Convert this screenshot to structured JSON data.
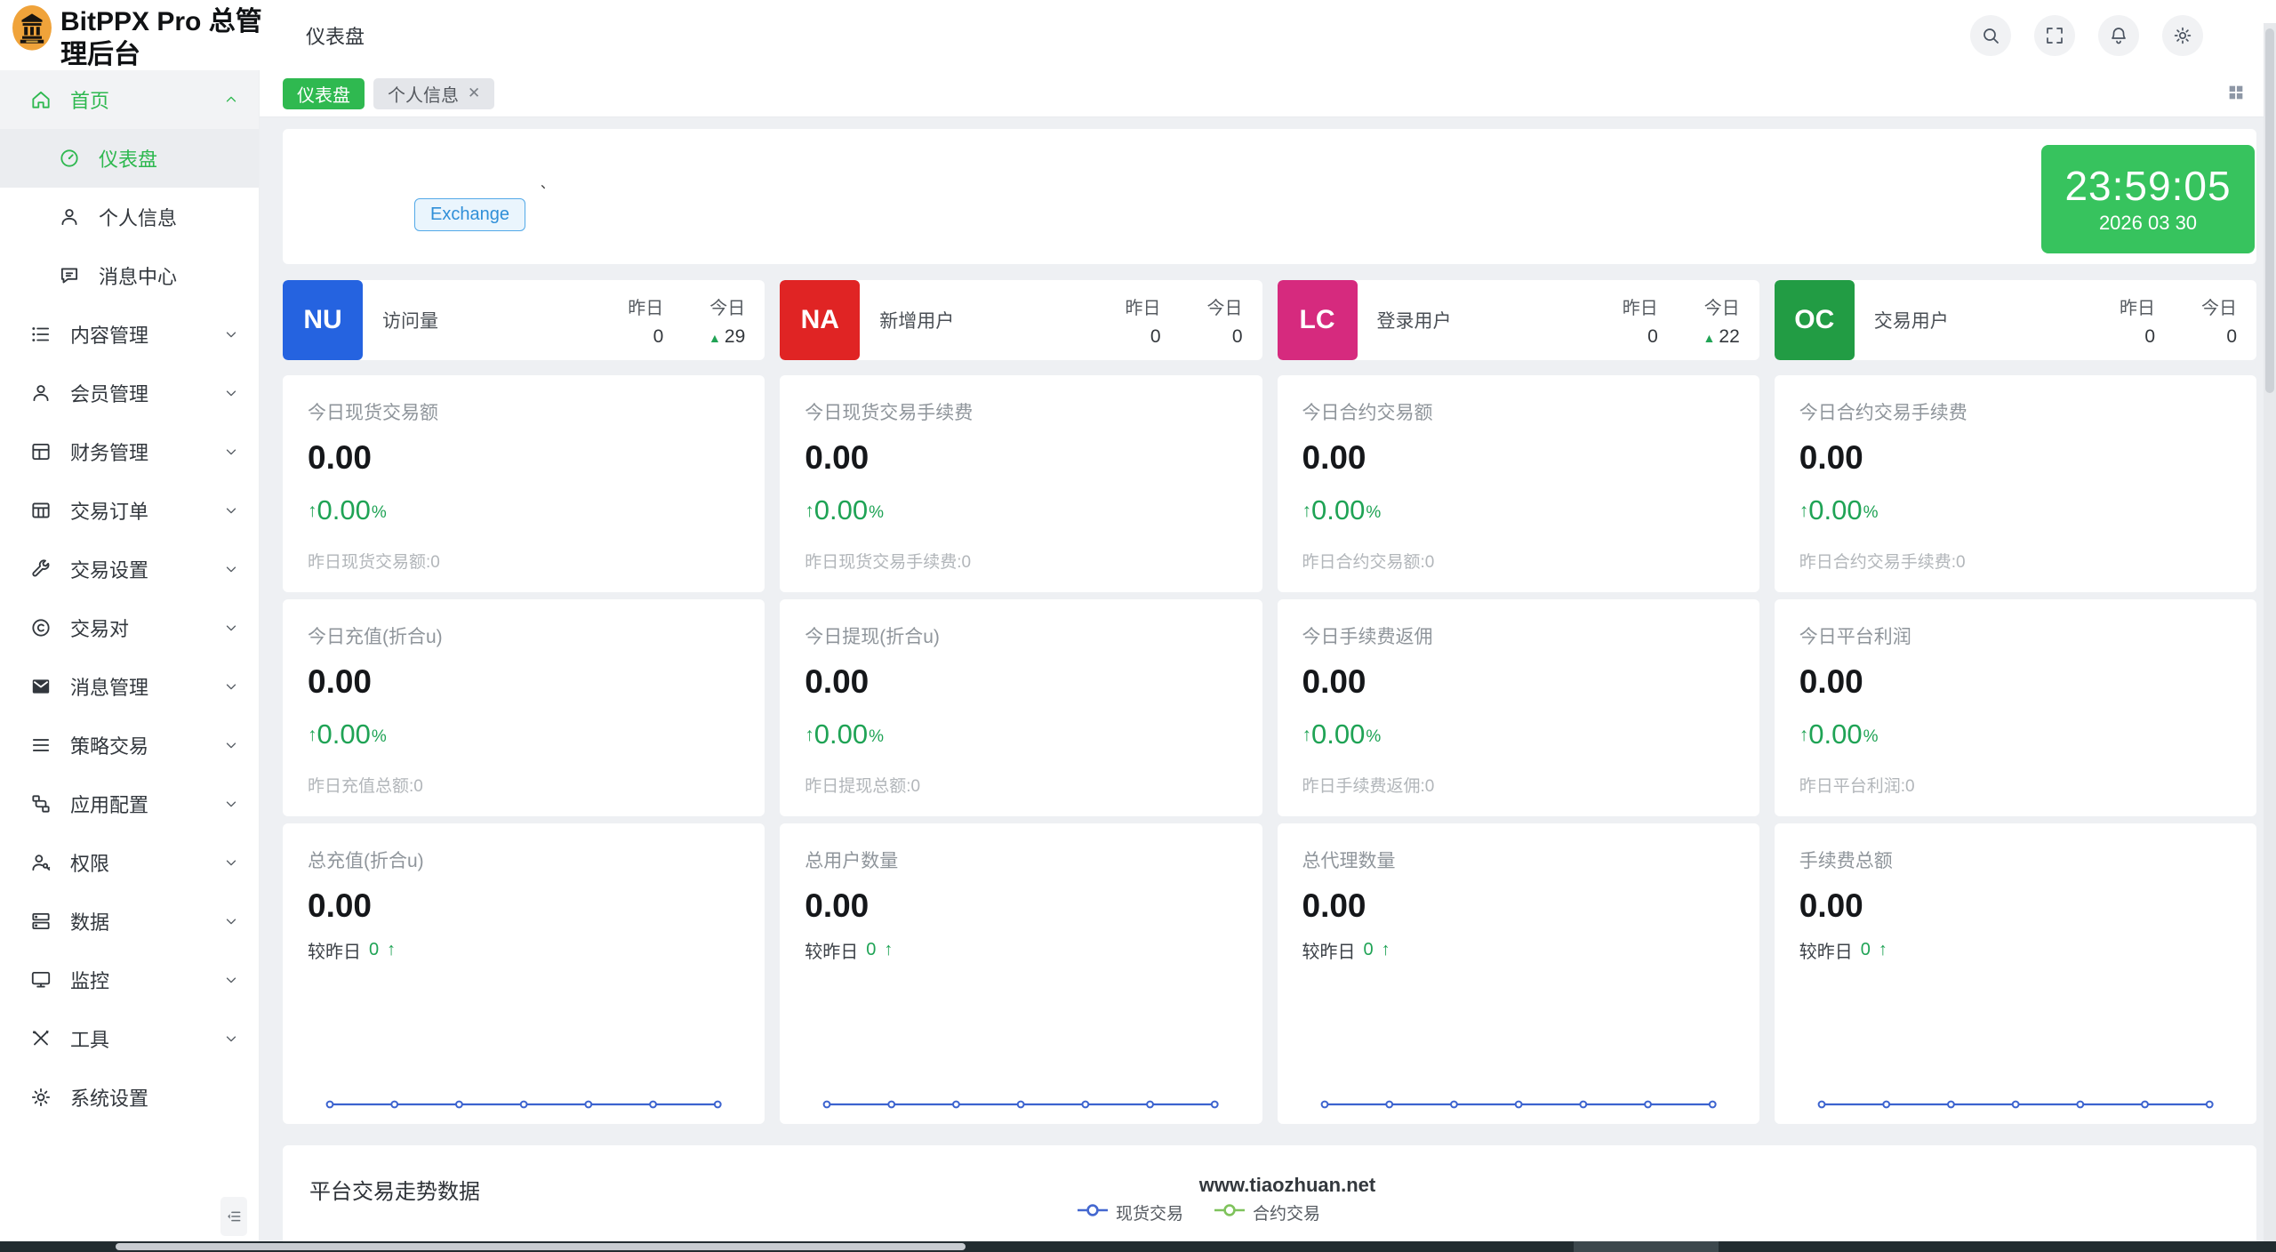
{
  "app": {
    "title": "BitPPX Pro 总管理后台",
    "breadcrumb": "仪表盘"
  },
  "header_actions": [
    {
      "icon": "search"
    },
    {
      "icon": "fullscreen"
    },
    {
      "icon": "bell"
    },
    {
      "icon": "gear"
    }
  ],
  "tabbar": {
    "tabs": [
      {
        "label": "仪表盘",
        "active": true,
        "closable": false
      },
      {
        "label": "个人信息",
        "active": false,
        "closable": true
      }
    ]
  },
  "sidebar": {
    "items": [
      {
        "id": "home",
        "icon": "home",
        "label": "首页",
        "level": 0,
        "chevron": "up",
        "color": "green",
        "bg": true
      },
      {
        "id": "dashboard",
        "icon": "gauge",
        "label": "仪表盘",
        "level": 1,
        "active": true
      },
      {
        "id": "profile",
        "icon": "user",
        "label": "个人信息",
        "level": 1
      },
      {
        "id": "message-center",
        "icon": "chat",
        "label": "消息中心",
        "level": 1
      },
      {
        "id": "content-mgmt",
        "icon": "list",
        "label": "内容管理",
        "level": 0,
        "chevron": "down"
      },
      {
        "id": "member-mgmt",
        "icon": "user",
        "label": "会员管理",
        "level": 0,
        "chevron": "down"
      },
      {
        "id": "finance-mgmt",
        "icon": "window",
        "label": "财务管理",
        "level": 0,
        "chevron": "down"
      },
      {
        "id": "trade-orders",
        "icon": "table",
        "label": "交易订单",
        "level": 0,
        "chevron": "down"
      },
      {
        "id": "trade-settings",
        "icon": "wrench",
        "label": "交易设置",
        "level": 0,
        "chevron": "down"
      },
      {
        "id": "trade-pairs",
        "icon": "copyright",
        "label": "交易对",
        "level": 0,
        "chevron": "down"
      },
      {
        "id": "message-mgmt",
        "icon": "envelope",
        "label": "消息管理",
        "level": 0,
        "chevron": "down"
      },
      {
        "id": "strategy-trade",
        "icon": "menu",
        "label": "策略交易",
        "level": 0,
        "chevron": "down"
      },
      {
        "id": "app-config",
        "icon": "nodes",
        "label": "应用配置",
        "level": 0,
        "chevron": "down"
      },
      {
        "id": "permissions",
        "icon": "userkey",
        "label": "权限",
        "level": 0,
        "chevron": "down"
      },
      {
        "id": "data",
        "icon": "server",
        "label": "数据",
        "level": 0,
        "chevron": "down"
      },
      {
        "id": "monitor",
        "icon": "monitor",
        "label": "监控",
        "level": 0,
        "chevron": "down"
      },
      {
        "id": "tools",
        "icon": "tools",
        "label": "工具",
        "level": 0,
        "chevron": "down"
      },
      {
        "id": "system-settings",
        "icon": "gear",
        "label": "系统设置",
        "level": 0
      }
    ]
  },
  "welcome": {
    "mark": "、",
    "exchange_button": "Exchange",
    "clock_time": "23:59:05",
    "clock_date": "2026 03 30"
  },
  "badge_cards": [
    {
      "code": "NU",
      "color": "#2563e0",
      "label": "访问量",
      "col1_label": "昨日",
      "col2_label": "今日",
      "col1_value": "0",
      "col2_value": "29",
      "col2_up": true
    },
    {
      "code": "NA",
      "color": "#e02424",
      "label": "新增用户",
      "col1_label": "昨日",
      "col2_label": "今日",
      "col1_value": "0",
      "col2_value": "0",
      "col2_up": false
    },
    {
      "code": "LC",
      "color": "#d62a7e",
      "label": "登录用户",
      "col1_label": "昨日",
      "col2_label": "今日",
      "col1_value": "0",
      "col2_value": "22",
      "col2_up": true
    },
    {
      "code": "OC",
      "color": "#229c44",
      "label": "交易用户",
      "col1_label": "昨日",
      "col2_label": "今日",
      "col1_value": "0",
      "col2_value": "0",
      "col2_up": false
    }
  ],
  "stat_rows": [
    [
      {
        "title": "今日现货交易额",
        "value": "0.00",
        "arrow": "↑",
        "change": "0.00",
        "percent": "%",
        "footer": "昨日现货交易额:0"
      },
      {
        "title": "今日现货交易手续费",
        "value": "0.00",
        "arrow": "↑",
        "change": "0.00",
        "percent": "%",
        "footer": "昨日现货交易手续费:0"
      },
      {
        "title": "今日合约交易额",
        "value": "0.00",
        "arrow": "↑",
        "change": "0.00",
        "percent": "%",
        "footer": "昨日合约交易额:0"
      },
      {
        "title": "今日合约交易手续费",
        "value": "0.00",
        "arrow": "↑",
        "change": "0.00",
        "percent": "%",
        "footer": "昨日合约交易手续费:0"
      }
    ],
    [
      {
        "title": "今日充值(折合u)",
        "value": "0.00",
        "arrow": "↑",
        "change": "0.00",
        "percent": "%",
        "footer": "昨日充值总额:0"
      },
      {
        "title": "今日提现(折合u)",
        "value": "0.00",
        "arrow": "↑",
        "change": "0.00",
        "percent": "%",
        "footer": "昨日提现总额:0"
      },
      {
        "title": "今日手续费返佣",
        "value": "0.00",
        "arrow": "↑",
        "change": "0.00",
        "percent": "%",
        "footer": "昨日手续费返佣:0"
      },
      {
        "title": "今日平台利润",
        "value": "0.00",
        "arrow": "↑",
        "change": "0.00",
        "percent": "%",
        "footer": "昨日平台利润:0"
      }
    ]
  ],
  "total_cards": [
    {
      "title": "总充值(折合u)",
      "value": "0.00",
      "compare_label": "较昨日",
      "compare_value": "0",
      "compare_arrow": "↑",
      "spark": [
        0,
        0,
        0,
        0,
        0,
        0,
        0
      ]
    },
    {
      "title": "总用户数量",
      "value": "0.00",
      "compare_label": "较昨日",
      "compare_value": "0",
      "compare_arrow": "↑",
      "spark": [
        0,
        0,
        0,
        0,
        0,
        0,
        0
      ]
    },
    {
      "title": "总代理数量",
      "value": "0.00",
      "compare_label": "较昨日",
      "compare_value": "0",
      "compare_arrow": "↑",
      "spark": [
        0,
        0,
        0,
        0,
        0,
        0,
        0
      ]
    },
    {
      "title": "手续费总额",
      "value": "0.00",
      "compare_label": "较昨日",
      "compare_value": "0",
      "compare_arrow": "↑",
      "spark": [
        0,
        0,
        0,
        0,
        0,
        0,
        0
      ]
    }
  ],
  "trend": {
    "title": "平台交易走势数据",
    "watermark": "www.tiaozhuan.net",
    "legend": [
      {
        "label": "现货交易",
        "color": "#4468d0"
      },
      {
        "label": "合约交易",
        "color": "#7fc35c"
      }
    ]
  },
  "colors": {
    "accent_green": "#2fb950",
    "stat_green": "#1fa355",
    "spark_blue": "#3c63cf",
    "clock_green": "#37c35e"
  }
}
